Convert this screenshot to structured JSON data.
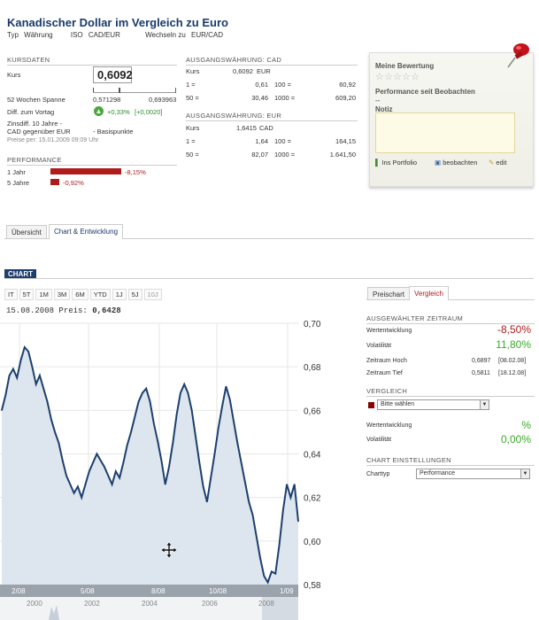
{
  "header": {
    "title": "Kanadischer Dollar im Vergleich zu Euro",
    "typ_label": "Typ",
    "typ_value": "Währung",
    "iso_label": "ISO",
    "iso_value": "CAD/EUR",
    "wechsel_label": "Wechseln zu",
    "wechsel_value": "EUR/CAD"
  },
  "kursdaten": {
    "head": "KURSDATEN",
    "kurs_label": "Kurs",
    "kurs_value": "0,6092",
    "spanne_label": "52 Wochen Spanne",
    "spanne_low": "0,571298",
    "spanne_high": "0,693963",
    "spanne_position": 0.31,
    "diff_label": "Diff. zum Vortag",
    "diff_pct": "+0,33%",
    "diff_abs": "[+0,0020]",
    "zins_line1": "Zinsdiff. 10 Jahre -",
    "zins_line2": "CAD gegenüber EUR",
    "zins_value": "- Basispunkte",
    "preise": "Preise per: 15.01.2009 09:09 Uhr"
  },
  "performance": {
    "head": "PERFORMANCE",
    "rows": [
      {
        "label": "1 Jahr",
        "value": "-8,15%",
        "fraction": 1.0
      },
      {
        "label": "5 Jahre",
        "value": "-0,92%",
        "fraction": 0.12
      }
    ]
  },
  "cad": {
    "head": "AUSGANGSWÄHRUNG: CAD",
    "kurs_label": "Kurs",
    "kurs_value": "0,6092",
    "kurs_unit": "EUR",
    "rows": [
      {
        "a": "1 =",
        "b": "0,61",
        "c": "100 =",
        "d": "60,92"
      },
      {
        "a": "50 =",
        "b": "30,46",
        "c": "1000 =",
        "d": "609,20"
      }
    ]
  },
  "eur": {
    "head": "AUSGANGSWÄHRUNG: EUR",
    "kurs_label": "Kurs",
    "kurs_value": "1,6415",
    "kurs_unit": "CAD",
    "rows": [
      {
        "a": "1 =",
        "b": "1,64",
        "c": "100 =",
        "d": "164,15"
      },
      {
        "a": "50 =",
        "b": "82,07",
        "c": "1000 =",
        "d": "1.641,50"
      }
    ]
  },
  "bewertung": {
    "title": "Meine Bewertung",
    "stars": 5,
    "performance_label": "Performance seit Beobachten",
    "performance_value": "--",
    "notiz_label": "Notiz",
    "links": [
      "Ins Portfolio",
      "beobachten",
      "edit"
    ]
  },
  "tabs": [
    "Übersicht",
    "Chart & Entwicklung"
  ],
  "chart_panel": {
    "tag": "CHART",
    "ranges": [
      "IT",
      "5T",
      "1M",
      "3M",
      "6M",
      "YTD",
      "1J",
      "5J",
      "10J"
    ],
    "active_range": "10J",
    "info_date": "15.08.2008",
    "info_label": "Preis:",
    "info_value": "0,6428"
  },
  "right_panel": {
    "tabs": [
      "Preischart",
      "Vergleich"
    ],
    "auswahl_head": "AUSGEWÄHLTER ZEITRAUM",
    "wertentwicklung_label": "Wertentwicklung",
    "wertentwicklung_value": "-8,50%",
    "volatilitaet_label": "Volatilität",
    "volatilitaet_value": "11,80%",
    "hoch_label": "Zeitraum Hoch",
    "hoch_value": "0,6897",
    "hoch_date": "[08.02.08]",
    "tief_label": "Zeitraum Tief",
    "tief_value": "0,5811",
    "tief_date": "[18.12.08]",
    "vergleich_head": "VERGLEICH",
    "vergleich_select": "Bitte wählen",
    "v_wert_label": "Wertentwicklung",
    "v_wert_value": "%",
    "v_vol_label": "Volatilität",
    "v_vol_value": "0,00%",
    "einst_head": "CHART EINSTELLUNGEN",
    "charttyp_label": "Charttyp",
    "charttyp_value": "Performance"
  },
  "colors": {
    "title": "#1a3a6b",
    "line": "#1d3f6d",
    "area": "#dde6ef",
    "neg": "#b01c1c",
    "pos": "#3aaa2a"
  },
  "chart_data": {
    "type": "area",
    "ylim": [
      0.58,
      0.7
    ],
    "yticks": [
      "0,70",
      "0,68",
      "0,66",
      "0,64",
      "0,62",
      "0,60",
      "0,58"
    ],
    "xticks": [
      "2/08",
      "5/08",
      "8/08",
      "10/08",
      "1/09"
    ],
    "nav_ticks": [
      "2000",
      "2002",
      "2004",
      "2006",
      "2008"
    ],
    "series": [
      {
        "values": [
          0.66,
          0.667,
          0.676,
          0.679,
          0.675,
          0.683,
          0.689,
          0.687,
          0.68,
          0.672,
          0.676,
          0.67,
          0.664,
          0.656,
          0.65,
          0.645,
          0.637,
          0.63,
          0.626,
          0.622,
          0.625,
          0.62,
          0.626,
          0.632,
          0.636,
          0.64,
          0.637,
          0.634,
          0.63,
          0.626,
          0.632,
          0.629,
          0.636,
          0.644,
          0.65,
          0.657,
          0.664,
          0.668,
          0.67,
          0.664,
          0.654,
          0.646,
          0.637,
          0.626,
          0.634,
          0.645,
          0.658,
          0.668,
          0.672,
          0.668,
          0.66,
          0.648,
          0.636,
          0.625,
          0.618,
          0.629,
          0.64,
          0.652,
          0.662,
          0.671,
          0.665,
          0.655,
          0.645,
          0.636,
          0.627,
          0.618,
          0.612,
          0.602,
          0.592,
          0.584,
          0.581,
          0.586,
          0.585,
          0.598,
          0.614,
          0.626,
          0.62,
          0.626,
          0.609
        ]
      }
    ]
  }
}
